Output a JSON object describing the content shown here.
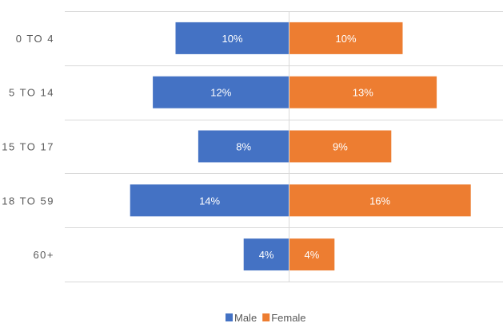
{
  "chart_data": {
    "type": "bar",
    "orientation": "horizontal",
    "style": "population pyramid (butterfly)",
    "categories": [
      "0 TO 4",
      "5 TO 14",
      "15 TO 17",
      "18 TO 59",
      "60+"
    ],
    "series": [
      {
        "name": "Male",
        "values": [
          10,
          12,
          8,
          14,
          4
        ],
        "labels": [
          "10%",
          "12%",
          "8%",
          "14%",
          "4%"
        ],
        "color": "#4472C4",
        "side": "left"
      },
      {
        "name": "Female",
        "values": [
          10,
          13,
          9,
          16,
          4
        ],
        "labels": [
          "10%",
          "13%",
          "9%",
          "16%",
          "4%"
        ],
        "color": "#ED7D31",
        "side": "right"
      }
    ],
    "value_unit": "%",
    "title": "",
    "xlabel": "",
    "ylabel": "",
    "grid": "horizontal category separators",
    "legend_position": "bottom-center"
  }
}
